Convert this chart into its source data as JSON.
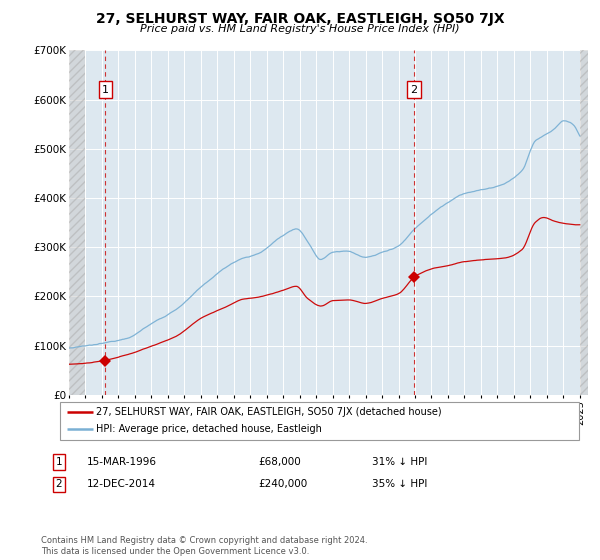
{
  "title": "27, SELHURST WAY, FAIR OAK, EASTLEIGH, SO50 7JX",
  "subtitle": "Price paid vs. HM Land Registry's House Price Index (HPI)",
  "legend_line1": "27, SELHURST WAY, FAIR OAK, EASTLEIGH, SO50 7JX (detached house)",
  "legend_line2": "HPI: Average price, detached house, Eastleigh",
  "label1_date": "15-MAR-1996",
  "label1_price": "£68,000",
  "label1_hpi": "31% ↓ HPI",
  "label2_date": "12-DEC-2014",
  "label2_price": "£240,000",
  "label2_hpi": "35% ↓ HPI",
  "footnote": "Contains HM Land Registry data © Crown copyright and database right 2024.\nThis data is licensed under the Open Government Licence v3.0.",
  "red_color": "#cc0000",
  "blue_color": "#7ab0d4",
  "vline_color": "#cc3333",
  "plot_bg_color": "#dde8f0",
  "ylim": [
    0,
    700000
  ],
  "yticks": [
    0,
    100000,
    200000,
    300000,
    400000,
    500000,
    600000,
    700000
  ],
  "ytick_labels": [
    "£0",
    "£100K",
    "£200K",
    "£300K",
    "£400K",
    "£500K",
    "£600K",
    "£700K"
  ],
  "marker1_x": 1996.21,
  "marker1_y": 68000,
  "marker2_x": 2014.95,
  "marker2_y": 240000,
  "vline1_x": 1996.21,
  "vline2_x": 2014.95,
  "hatch_end_x": 1995.0,
  "xmin": 1994.0,
  "xmax": 2025.5
}
